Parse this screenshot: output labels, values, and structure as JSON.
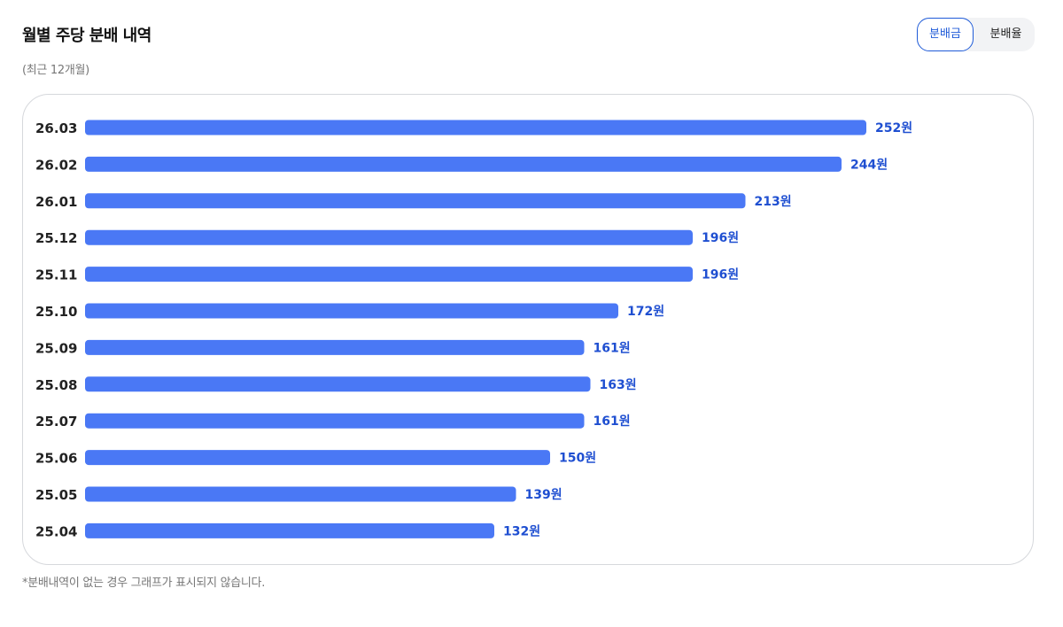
{
  "header": {
    "title": "월별 주당 분배 내역",
    "subtitle": "(최근 12개월)"
  },
  "toggle": {
    "options": [
      "분배금",
      "분배율"
    ],
    "selected": "분배금"
  },
  "footnote": "*분배내역이 없는 경우 그래프가 표시되지 않습니다.",
  "colors": {
    "bar": "#4a78f5",
    "value_label": "#1f4fd1",
    "category_label": "#222222"
  },
  "chart_data": {
    "type": "bar",
    "orientation": "horizontal",
    "title": "월별 주당 분배 내역",
    "subtitle": "(최근 12개월)",
    "categories": [
      "26.03",
      "26.02",
      "26.01",
      "25.12",
      "25.11",
      "25.10",
      "25.09",
      "25.08",
      "25.07",
      "25.06",
      "25.05",
      "25.04"
    ],
    "values": [
      252,
      244,
      213,
      196,
      196,
      172,
      161,
      163,
      161,
      150,
      139,
      132
    ],
    "value_labels": [
      "252원",
      "244원",
      "213원",
      "196원",
      "196원",
      "172원",
      "161원",
      "163원",
      "161원",
      "150원",
      "139원",
      "132원"
    ],
    "unit": "원",
    "xlim": [
      0,
      252
    ],
    "grid": false,
    "legend": "none"
  }
}
